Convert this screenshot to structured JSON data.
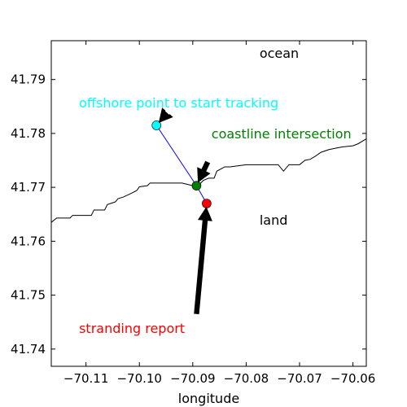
{
  "chart_data": {
    "type": "line",
    "title": "",
    "xlabel": "longitude",
    "ylabel": "",
    "xlim": [
      -70.1165,
      -70.0575
    ],
    "ylim": [
      41.7368,
      41.7972
    ],
    "x_ticks": [
      -70.11,
      -70.1,
      -70.09,
      -70.08,
      -70.07,
      -70.06
    ],
    "x_tick_labels": [
      "−70.11",
      "−70.10",
      "−70.09",
      "−70.08",
      "−70.07",
      "−70.06"
    ],
    "y_ticks": [
      41.74,
      41.75,
      41.76,
      41.77,
      41.78,
      41.79
    ],
    "y_tick_labels": [
      "41.74",
      "41.75",
      "41.76",
      "41.77",
      "41.78",
      "41.79"
    ],
    "grid": false,
    "coastline": {
      "color": "#000000",
      "x": [
        -70.1165,
        -70.1155,
        -70.1145,
        -70.113,
        -70.1125,
        -70.1115,
        -70.109,
        -70.1085,
        -70.1065,
        -70.106,
        -70.1045,
        -70.104,
        -70.103,
        -70.1015,
        -70.1005,
        -70.1,
        -70.0985,
        -70.098,
        -70.0965,
        -70.094,
        -70.092,
        -70.09,
        -70.089,
        -70.088,
        -70.087,
        -70.086,
        -70.0855,
        -70.084,
        -70.083,
        -70.08,
        -70.078,
        -70.076,
        -70.074,
        -70.073,
        -70.072,
        -70.071,
        -70.07,
        -70.069,
        -70.068,
        -70.067,
        -70.066,
        -70.0645,
        -70.063,
        -70.062,
        -70.06,
        -70.059,
        -70.0575
      ],
      "y": [
        41.7635,
        41.7643,
        41.7643,
        41.7643,
        41.7648,
        41.7648,
        41.7648,
        41.7658,
        41.7658,
        41.7668,
        41.7673,
        41.7679,
        41.7682,
        41.7689,
        41.7694,
        41.7701,
        41.7703,
        41.7708,
        41.7708,
        41.7708,
        41.7708,
        41.7703,
        41.7703,
        41.7713,
        41.7717,
        41.7717,
        41.773,
        41.7738,
        41.7738,
        41.7742,
        41.7742,
        41.7742,
        41.7742,
        41.773,
        41.7742,
        41.7742,
        41.7742,
        41.775,
        41.7752,
        41.7758,
        41.7765,
        41.777,
        41.7773,
        41.7775,
        41.7777,
        41.7781,
        41.779
      ]
    },
    "track_line": {
      "color": "#0000ff",
      "x": [
        -70.0968,
        -70.0893,
        -70.0874
      ],
      "y": [
        41.7815,
        41.7703,
        41.767
      ]
    },
    "points": [
      {
        "name": "offshore",
        "x": -70.0968,
        "y": 41.7815,
        "color": "#00ffff"
      },
      {
        "name": "intersection",
        "x": -70.0893,
        "y": 41.7703,
        "color": "#008000"
      },
      {
        "name": "stranding",
        "x": -70.0874,
        "y": 41.767,
        "color": "#ff0000"
      }
    ],
    "arrows": [
      {
        "from": [
          -70.0948,
          41.7838
        ],
        "to": [
          -70.0968,
          41.7815
        ]
      },
      {
        "from": [
          -70.0872,
          41.7747
        ],
        "to": [
          -70.0893,
          41.7703
        ]
      },
      {
        "from": [
          -70.0893,
          41.7465
        ],
        "to": [
          -70.0874,
          41.767
        ]
      }
    ],
    "annotations": [
      {
        "text": "offshore point to start tracking",
        "color": "#00ffff",
        "x": -70.1113,
        "y": 41.7848
      },
      {
        "text": "coastline intersection",
        "color": "#008000",
        "x": -70.0865,
        "y": 41.7791
      },
      {
        "text": "ocean",
        "color": "#000000",
        "x": -70.0775,
        "y": 41.794
      },
      {
        "text": "land",
        "color": "#000000",
        "x": -70.0775,
        "y": 41.7631
      },
      {
        "text": "stranding report",
        "color": "#ff0000",
        "x": -70.1113,
        "y": 41.743
      }
    ]
  }
}
